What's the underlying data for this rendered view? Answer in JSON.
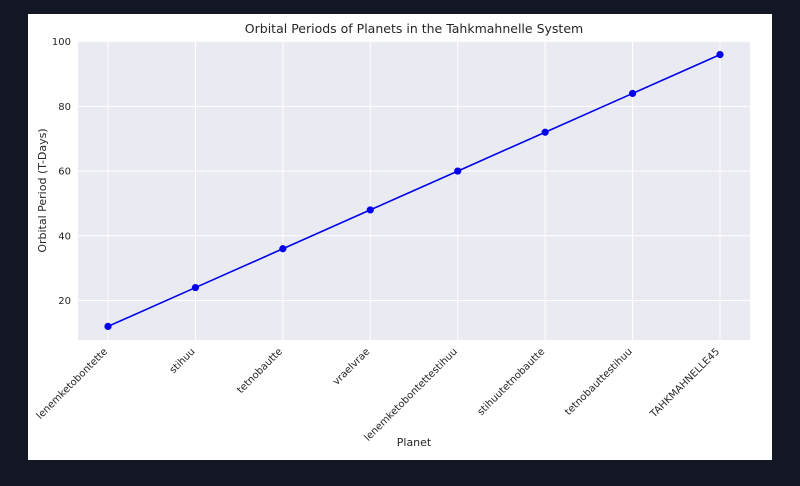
{
  "chart_data": {
    "type": "line",
    "title": "Orbital Periods of Planets in the Tahkmahnelle System",
    "xlabel": "Planet",
    "ylabel": "Orbital Period (T-Days)",
    "categories": [
      "lenemketobontette",
      "stihuu",
      "tetnobautte",
      "vraelvrae",
      "lenemketobontettestihuu",
      "stihuutetnobautte",
      "tetnobauttestihuu",
      "TAHKMAHNELLE45"
    ],
    "series": [
      {
        "values": [
          12,
          24,
          36,
          48,
          60,
          72,
          84,
          96
        ]
      }
    ],
    "ylim": [
      7.8,
      100.2
    ],
    "yticks": [
      20,
      40,
      60,
      80,
      100
    ],
    "grid": true,
    "legend": "none",
    "line_color": "#0000ee",
    "plot_background": "#eaeaf2",
    "grid_color": "#ffffff"
  }
}
